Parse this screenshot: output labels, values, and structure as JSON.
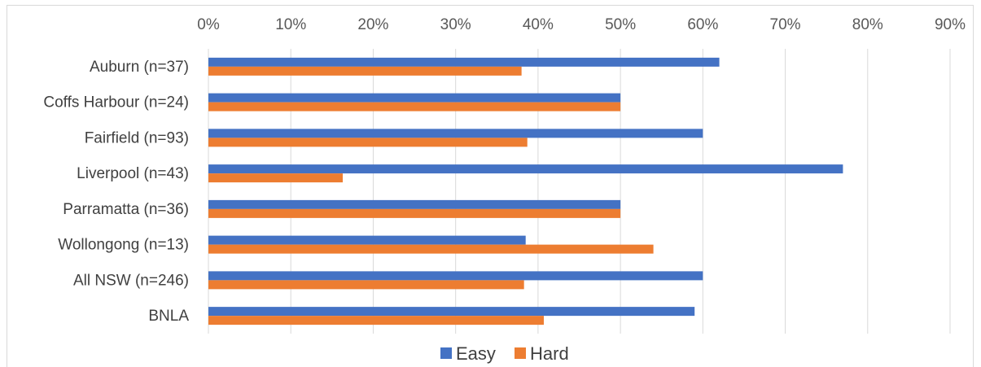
{
  "chart_data": {
    "type": "bar",
    "orientation": "horizontal",
    "categories": [
      "Auburn (n=37)",
      "Coffs Harbour (n=24)",
      "Fairfield (n=93)",
      "Liverpool (n=43)",
      "Parramatta (n=36)",
      "Wollongong (n=13)",
      "All NSW (n=246)",
      "BNLA"
    ],
    "series": [
      {
        "name": "Easy",
        "color": "#4472C4",
        "values": [
          62,
          50,
          60,
          77,
          50,
          38.5,
          60,
          59
        ]
      },
      {
        "name": "Hard",
        "color": "#ED7D31",
        "values": [
          38,
          50,
          38.7,
          16.3,
          50,
          54,
          38.3,
          40.7
        ]
      }
    ],
    "xlim": [
      0,
      90
    ],
    "xticks": [
      "0%",
      "10%",
      "20%",
      "30%",
      "40%",
      "50%",
      "60%",
      "70%",
      "80%",
      "90%"
    ],
    "x_axis_position": "top",
    "grid": true,
    "legend": "bottom"
  }
}
